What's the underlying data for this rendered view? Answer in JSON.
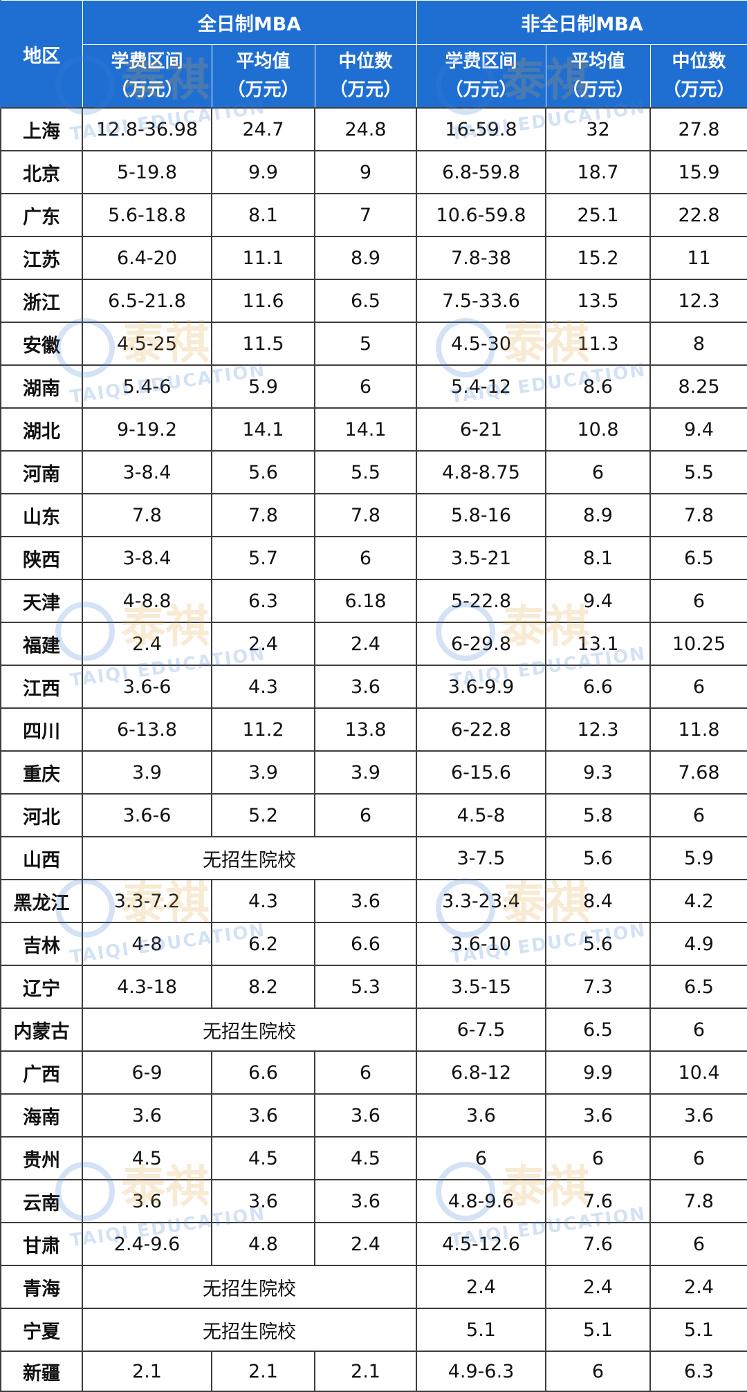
{
  "header": {
    "region_label": "地区",
    "group_fulltime": "全日制MBA",
    "group_parttime": "非全日制MBA",
    "col_range_l1": "学费区间",
    "col_avg_l1": "平均值",
    "col_median_l1": "中位数",
    "unit": "（万元）"
  },
  "no_school_text": "无招生院校",
  "rows": [
    {
      "region": "上海",
      "ft": [
        "12.8-36.98",
        "24.7",
        "24.8"
      ],
      "pt": [
        "16-59.8",
        "32",
        "27.8"
      ]
    },
    {
      "region": "北京",
      "ft": [
        "5-19.8",
        "9.9",
        "9"
      ],
      "pt": [
        "6.8-59.8",
        "18.7",
        "15.9"
      ]
    },
    {
      "region": "广东",
      "ft": [
        "5.6-18.8",
        "8.1",
        "7"
      ],
      "pt": [
        "10.6-59.8",
        "25.1",
        "22.8"
      ]
    },
    {
      "region": "江苏",
      "ft": [
        "6.4-20",
        "11.1",
        "8.9"
      ],
      "pt": [
        "7.8-38",
        "15.2",
        "11"
      ]
    },
    {
      "region": "浙江",
      "ft": [
        "6.5-21.8",
        "11.6",
        "6.5"
      ],
      "pt": [
        "7.5-33.6",
        "13.5",
        "12.3"
      ]
    },
    {
      "region": "安徽",
      "ft": [
        "4.5-25",
        "11.5",
        "5"
      ],
      "pt": [
        "4.5-30",
        "11.3",
        "8"
      ]
    },
    {
      "region": "湖南",
      "ft": [
        "5.4-6",
        "5.9",
        "6"
      ],
      "pt": [
        "5.4-12",
        "8.6",
        "8.25"
      ]
    },
    {
      "region": "湖北",
      "ft": [
        "9-19.2",
        "14.1",
        "14.1"
      ],
      "pt": [
        "6-21",
        "10.8",
        "9.4"
      ]
    },
    {
      "region": "河南",
      "ft": [
        "3-8.4",
        "5.6",
        "5.5"
      ],
      "pt": [
        "4.8-8.75",
        "6",
        "5.5"
      ]
    },
    {
      "region": "山东",
      "ft": [
        "7.8",
        "7.8",
        "7.8"
      ],
      "pt": [
        "5.8-16",
        "8.9",
        "7.8"
      ]
    },
    {
      "region": "陕西",
      "ft": [
        "3-8.4",
        "5.7",
        "6"
      ],
      "pt": [
        "3.5-21",
        "8.1",
        "6.5"
      ]
    },
    {
      "region": "天津",
      "ft": [
        "4-8.8",
        "6.3",
        "6.18"
      ],
      "pt": [
        "5-22.8",
        "9.4",
        "6"
      ]
    },
    {
      "region": "福建",
      "ft": [
        "2.4",
        "2.4",
        "2.4"
      ],
      "pt": [
        "6-29.8",
        "13.1",
        "10.25"
      ]
    },
    {
      "region": "江西",
      "ft": [
        "3.6-6",
        "4.3",
        "3.6"
      ],
      "pt": [
        "3.6-9.9",
        "6.6",
        "6"
      ]
    },
    {
      "region": "四川",
      "ft": [
        "6-13.8",
        "11.2",
        "13.8"
      ],
      "pt": [
        "6-22.8",
        "12.3",
        "11.8"
      ]
    },
    {
      "region": "重庆",
      "ft": [
        "3.9",
        "3.9",
        "3.9"
      ],
      "pt": [
        "6-15.6",
        "9.3",
        "7.68"
      ]
    },
    {
      "region": "河北",
      "ft": [
        "3.6-6",
        "5.2",
        "6"
      ],
      "pt": [
        "4.5-8",
        "5.8",
        "6"
      ]
    },
    {
      "region": "山西",
      "ft": null,
      "pt": [
        "3-7.5",
        "5.6",
        "5.9"
      ]
    },
    {
      "region": "黑龙江",
      "ft": [
        "3.3-7.2",
        "4.3",
        "3.6"
      ],
      "pt": [
        "3.3-23.4",
        "8.4",
        "4.2"
      ]
    },
    {
      "region": "吉林",
      "ft": [
        "4-8",
        "6.2",
        "6.6"
      ],
      "pt": [
        "3.6-10",
        "5.6",
        "4.9"
      ]
    },
    {
      "region": "辽宁",
      "ft": [
        "4.3-18",
        "8.2",
        "5.3"
      ],
      "pt": [
        "3.5-15",
        "7.3",
        "6.5"
      ]
    },
    {
      "region": "内蒙古",
      "ft": null,
      "pt": [
        "6-7.5",
        "6.5",
        "6"
      ]
    },
    {
      "region": "广西",
      "ft": [
        "6-9",
        "6.6",
        "6"
      ],
      "pt": [
        "6.8-12",
        "9.9",
        "10.4"
      ]
    },
    {
      "region": "海南",
      "ft": [
        "3.6",
        "3.6",
        "3.6"
      ],
      "pt": [
        "3.6",
        "3.6",
        "3.6"
      ]
    },
    {
      "region": "贵州",
      "ft": [
        "4.5",
        "4.5",
        "4.5"
      ],
      "pt": [
        "6",
        "6",
        "6"
      ]
    },
    {
      "region": "云南",
      "ft": [
        "3.6",
        "3.6",
        "3.6"
      ],
      "pt": [
        "4.8-9.6",
        "7.6",
        "7.8"
      ]
    },
    {
      "region": "甘肃",
      "ft": [
        "2.4-9.6",
        "4.8",
        "2.4"
      ],
      "pt": [
        "4.5-12.6",
        "7.6",
        "6"
      ]
    },
    {
      "region": "青海",
      "ft": null,
      "pt": [
        "2.4",
        "2.4",
        "2.4"
      ]
    },
    {
      "region": "宁夏",
      "ft": null,
      "pt": [
        "5.1",
        "5.1",
        "5.1"
      ]
    },
    {
      "region": "新疆",
      "ft": [
        "2.1",
        "2.1",
        "2.1"
      ],
      "pt": [
        "4.9-6.3",
        "6",
        "6.3"
      ]
    }
  ],
  "watermark": {
    "logo_text": "泰祺",
    "sub_text": "TAIQI EDUCATION",
    "color_gold": "#e0a23c",
    "color_blue": "#3a7fd4"
  },
  "colors": {
    "header_bg": "#1f6fd3",
    "header_text": "#ffffff",
    "border": "#3d3d3d"
  }
}
